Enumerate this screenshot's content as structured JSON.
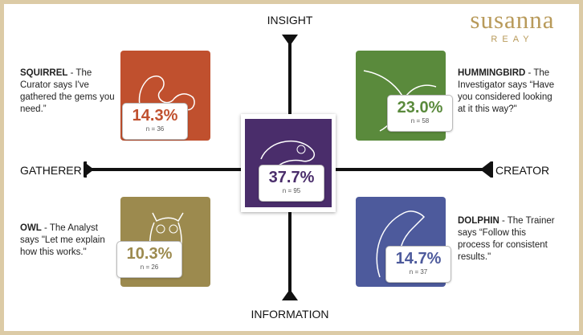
{
  "brand": {
    "name": "susanna",
    "sub": "REAY"
  },
  "axes": {
    "top": "INSIGHT",
    "bottom": "INFORMATION",
    "left": "GATHERER",
    "right": "CREATOR"
  },
  "center": {
    "percent": "37.7%",
    "n": "n = 95"
  },
  "quadrants": [
    {
      "animal": "SQUIRREL",
      "description": " - The Curator says I've gathered the gems you need.”",
      "percent": "14.3%",
      "n": "n = 36"
    },
    {
      "animal": "HUMMINGBIRD",
      "description": " - The Investigator says “Have you considered looking at it this way?\"",
      "percent": "23.0%",
      "n": "n = 58"
    },
    {
      "animal": "OWL",
      "description": " - The Analyst says \"Let me explain how this works.\"",
      "percent": "10.3%",
      "n": "n = 26"
    },
    {
      "animal": "DOLPHIN",
      "description": " - The Trainer says “Follow this process for consistent results.\"",
      "percent": "14.7%",
      "n": "n = 37"
    }
  ]
}
